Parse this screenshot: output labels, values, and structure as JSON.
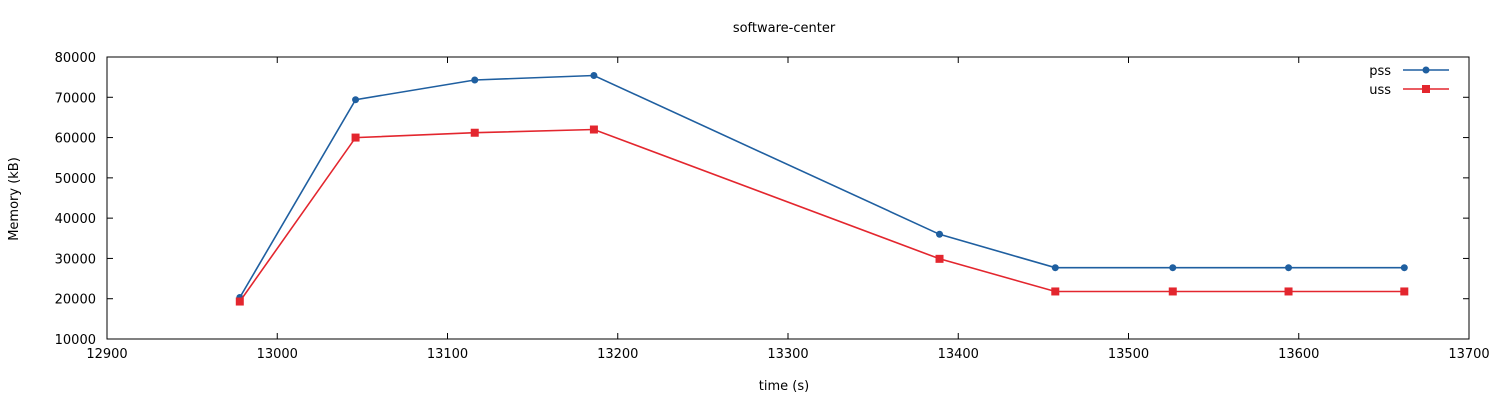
{
  "chart_data": {
    "type": "line",
    "title": "software-center",
    "xlabel": "time (s)",
    "ylabel": "Memory (kB)",
    "xlim": [
      12900,
      13700
    ],
    "ylim": [
      10000,
      80000
    ],
    "x_ticks": [
      12900,
      13000,
      13100,
      13200,
      13300,
      13400,
      13500,
      13600,
      13700
    ],
    "y_ticks": [
      10000,
      20000,
      30000,
      40000,
      50000,
      60000,
      70000,
      80000
    ],
    "grid": false,
    "legend_position": "top-right",
    "series": [
      {
        "name": "pss",
        "color": "#1f5fa0",
        "marker": "circle",
        "x": [
          12978,
          13046,
          13116,
          13186,
          13389,
          13457,
          13526,
          13594,
          13662
        ],
        "y": [
          20300,
          69400,
          74300,
          75400,
          36000,
          27700,
          27700,
          27700,
          27700
        ]
      },
      {
        "name": "uss",
        "color": "#e3262e",
        "marker": "square",
        "x": [
          12978,
          13046,
          13116,
          13186,
          13389,
          13457,
          13526,
          13594,
          13662
        ],
        "y": [
          19300,
          60000,
          61200,
          62000,
          29900,
          21800,
          21800,
          21800,
          21800
        ]
      }
    ]
  }
}
